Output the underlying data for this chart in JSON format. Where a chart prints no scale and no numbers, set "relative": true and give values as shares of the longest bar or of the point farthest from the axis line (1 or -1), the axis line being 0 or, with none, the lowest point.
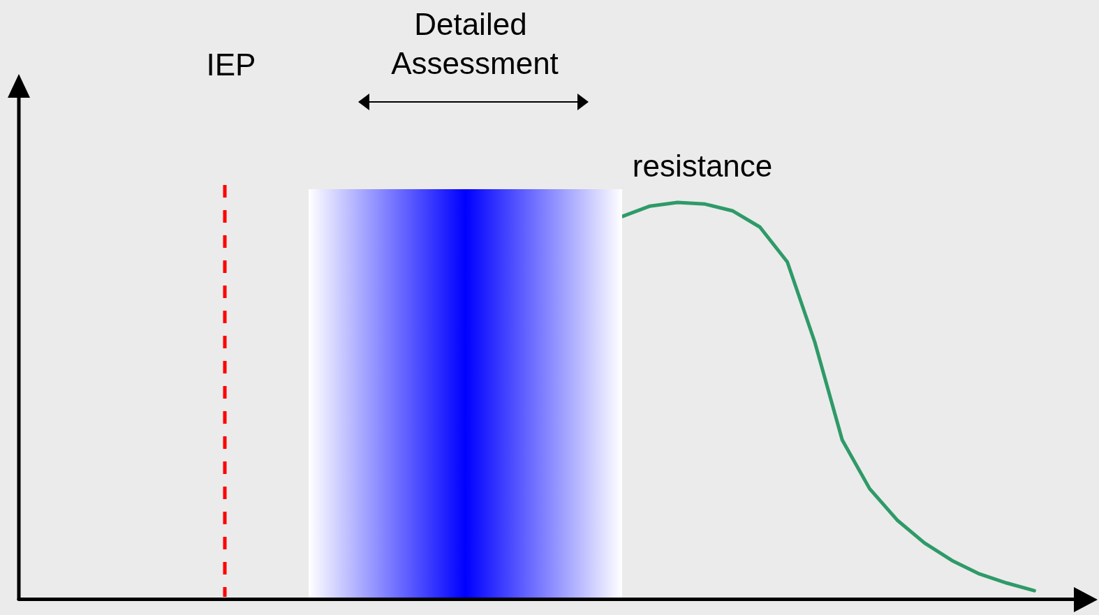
{
  "chart_data": {
    "type": "line",
    "relative": true,
    "grid": false,
    "legend": false,
    "marker": "none",
    "line_style": "solid",
    "categories": [
      null,
      null,
      null,
      null,
      null,
      null,
      null,
      null,
      null,
      null,
      null,
      null,
      null,
      null,
      null,
      null,
      null,
      null,
      null,
      null,
      null,
      null,
      null,
      null,
      null,
      null,
      null,
      null,
      null,
      null,
      null,
      null,
      null,
      null,
      null,
      null,
      null,
      null,
      null,
      null
    ],
    "series": [
      {
        "name": "resistance",
        "color": "#2e9a68",
        "values": [
          null,
          null,
          null,
          null,
          null,
          null,
          null,
          null,
          null,
          null,
          null,
          null,
          null,
          null,
          null,
          null,
          null,
          null,
          null,
          null,
          null,
          null,
          0.965,
          0.991,
          1,
          0.996,
          0.979,
          0.938,
          0.85,
          0.648,
          0.401,
          0.278,
          0.199,
          0.141,
          0.097,
          0.063,
          0.04,
          0.021,
          null,
          null
        ]
      }
    ],
    "annotations": [
      "IEP",
      "Detailed Assessment"
    ]
  }
}
